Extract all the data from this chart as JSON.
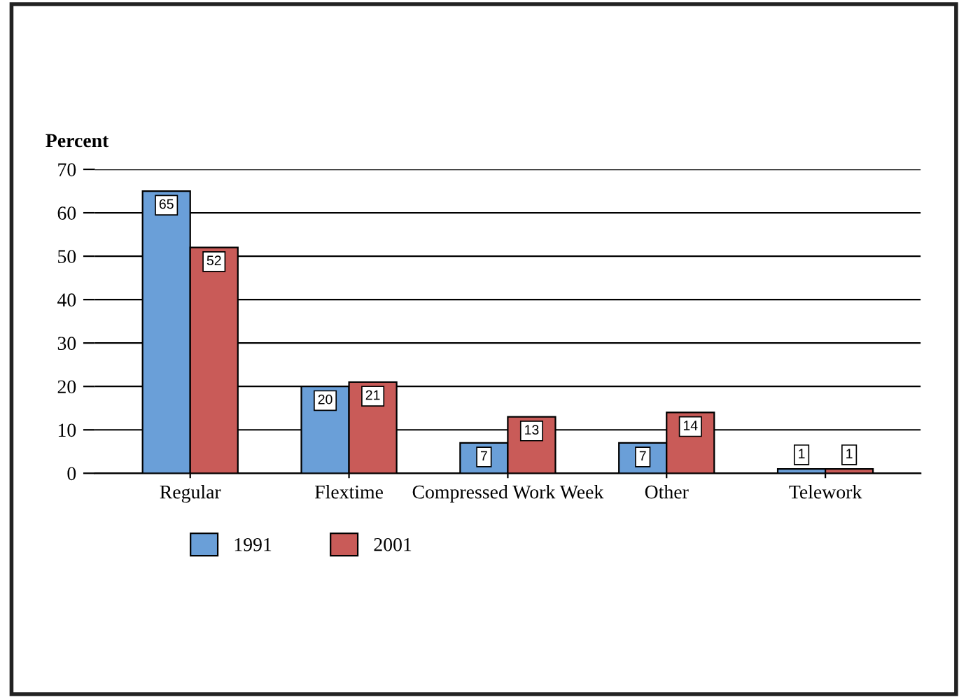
{
  "chart_data": {
    "type": "bar",
    "ylabel": "Percent",
    "categories": [
      "Regular",
      "Flextime",
      "Compressed Work Week",
      "Other",
      "Telework"
    ],
    "series": [
      {
        "name": "1991",
        "color": "#6a9fd8",
        "values": [
          65,
          20,
          7,
          7,
          1
        ]
      },
      {
        "name": "2001",
        "color": "#c95b58",
        "values": [
          52,
          21,
          13,
          14,
          1
        ]
      }
    ],
    "ylim": [
      0,
      70
    ],
    "yticks": [
      0,
      10,
      20,
      30,
      40,
      50,
      60,
      70
    ],
    "grid": "y",
    "legend": "bottom",
    "data_labels": true
  }
}
